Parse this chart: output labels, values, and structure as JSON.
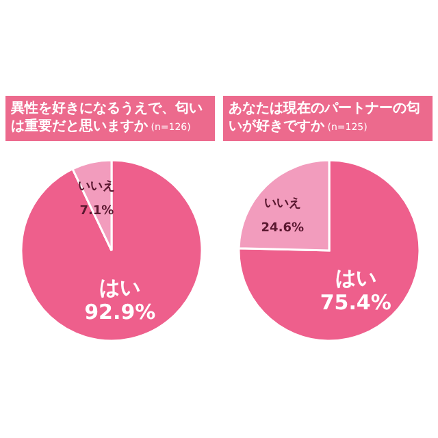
{
  "chart_data": [
    {
      "type": "pie",
      "title": "異性を好きになるうえで、匂いは重要だと思いますか",
      "subtitle": "(n=126)",
      "categories": [
        "はい",
        "いいえ"
      ],
      "values": [
        92.9,
        7.1
      ],
      "colors": [
        "#ee5f8c",
        "#f29cbd"
      ],
      "value_labels": [
        "92.9%",
        "7.1%"
      ]
    },
    {
      "type": "pie",
      "title": "あなたは現在のパートナーの匂いが好きですか",
      "subtitle": "(n=125)",
      "categories": [
        "はい",
        "いいえ"
      ],
      "values": [
        75.4,
        24.6
      ],
      "colors": [
        "#ee5f8c",
        "#f29cbd"
      ],
      "value_labels": [
        "75.4%",
        "24.6%"
      ]
    }
  ]
}
